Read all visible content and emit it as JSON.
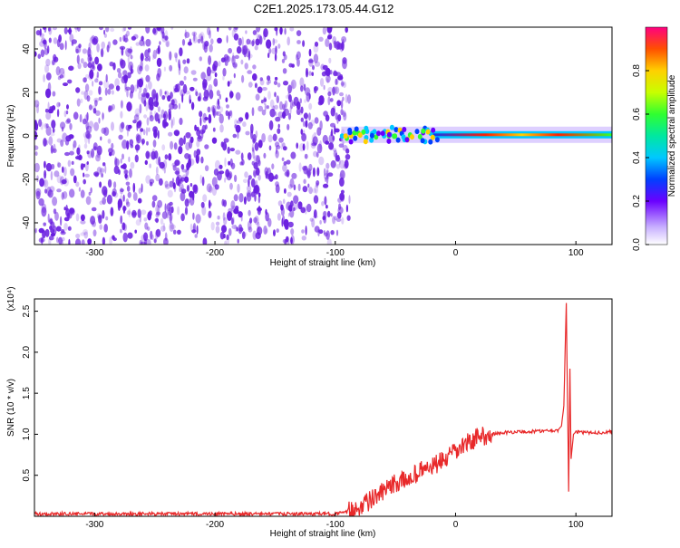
{
  "title": "C2E1.2025.173.05.44.G12",
  "colors": {
    "snr_line": "#e8292a",
    "scatter_base": "#6a1fe0",
    "axis": "#000000"
  },
  "chart_data": [
    {
      "type": "heatmap",
      "name": "spectrogram",
      "xlabel": "Height of straight line (km)",
      "ylabel": "Frequency (Hz)",
      "xlim": [
        -350,
        130
      ],
      "ylim": [
        -50,
        50
      ],
      "xticks": [
        "-300",
        "-200",
        "-100",
        "0",
        "100"
      ],
      "yticks": [
        "-40",
        "-20",
        "0",
        "20",
        "40"
      ],
      "grid": false,
      "noise_region_x": [
        -350,
        -88
      ],
      "signal_track_frequency_hz": 0.5,
      "colorbar": {
        "label": "Normalized spectral amplitude",
        "ticks": [
          "0.0",
          "0.2",
          "0.4",
          "0.6",
          "0.8"
        ],
        "range": [
          0,
          1
        ],
        "colormap": "rainbow"
      }
    },
    {
      "type": "line",
      "name": "snr",
      "xlabel": "Height of straight line (km)",
      "ylabel": "SNR (10 * v/v)",
      "scale_label": "(x10⁴)",
      "xlim": [
        -350,
        130
      ],
      "ylim": [
        0,
        2.65
      ],
      "xticks": [
        "-300",
        "-200",
        "-100",
        "0",
        "100"
      ],
      "yticks": [
        "0.5",
        "1.0",
        "1.5",
        "2.0",
        "2.5"
      ],
      "grid": false,
      "series": [
        {
          "x": [
            -350,
            -300,
            -250,
            -200,
            -150,
            -100,
            -90,
            -80,
            -70,
            -60,
            -50,
            -40,
            -30,
            -20,
            -10,
            0,
            10,
            20,
            30,
            40,
            50,
            60,
            70,
            80,
            85,
            88,
            90,
            92,
            94,
            95,
            96,
            98,
            100,
            105,
            110,
            120,
            130
          ],
          "y": [
            0.03,
            0.03,
            0.03,
            0.03,
            0.03,
            0.03,
            0.05,
            0.12,
            0.2,
            0.3,
            0.4,
            0.45,
            0.55,
            0.6,
            0.68,
            0.78,
            0.9,
            0.97,
            1.0,
            1.02,
            1.03,
            1.03,
            1.04,
            1.05,
            1.05,
            1.1,
            1.35,
            2.6,
            0.3,
            1.8,
            0.7,
            1.0,
            1.03,
            1.02,
            1.02,
            1.02,
            1.03
          ]
        }
      ]
    }
  ]
}
